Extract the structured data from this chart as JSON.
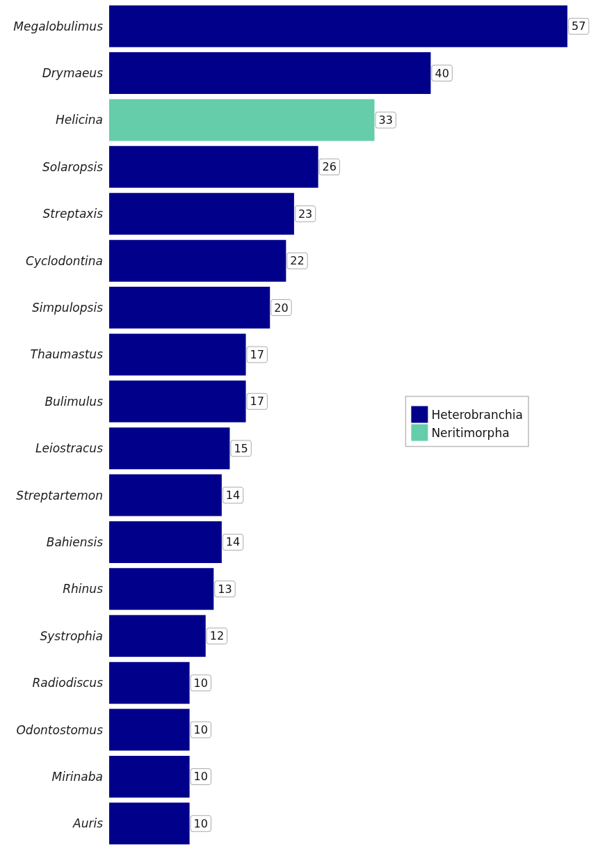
{
  "chart_data": {
    "type": "bar",
    "orientation": "horizontal",
    "stacked": true,
    "categories": [
      "Megalobulimus",
      "Drymaeus",
      "Helicina",
      "Solaropsis",
      "Streptaxis",
      "Cyclodontina",
      "Simpulopsis",
      "Thaumastus",
      "Bulimulus",
      "Leiostracus",
      "Streptartemon",
      "Bahiensis",
      "Rhinus",
      "Systrophia",
      "Radiodiscus",
      "Odontostomus",
      "Mirinaba",
      "Auris"
    ],
    "series": [
      {
        "name": "Heterobranchia",
        "color": "#00008b",
        "values": [
          57,
          40,
          null,
          26,
          23,
          22,
          20,
          17,
          17,
          15,
          14,
          14,
          13,
          12,
          10,
          10,
          10,
          10
        ]
      },
      {
        "name": "Neritimorpha",
        "color": "#66cdaa",
        "values": [
          null,
          null,
          33,
          null,
          null,
          null,
          null,
          null,
          null,
          null,
          null,
          null,
          null,
          null,
          null,
          null,
          null,
          null
        ]
      }
    ],
    "data_labels": true,
    "legend": "right",
    "tick_labels": "y"
  }
}
